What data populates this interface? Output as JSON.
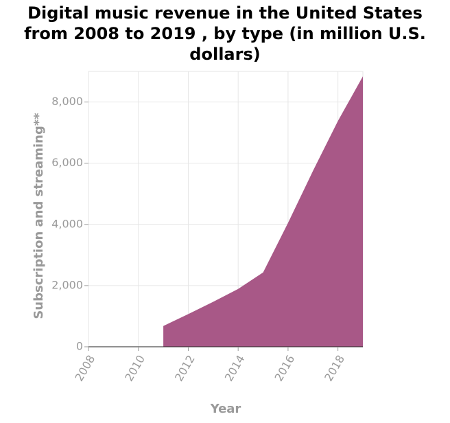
{
  "chart_data": {
    "type": "area",
    "title": "Digital music revenue in the United States\nfrom 2008 to 2019 , by type (in million U.S.\ndollars)",
    "xlabel": "Year",
    "ylabel": "Subscription and streaming**",
    "xlim": [
      2008,
      2019
    ],
    "ylim": [
      0,
      9000
    ],
    "x_ticks": [
      2008,
      2010,
      2012,
      2014,
      2016,
      2018
    ],
    "y_ticks": [
      0,
      2000,
      4000,
      6000,
      8000
    ],
    "y_tick_labels": [
      "0",
      "2,000",
      "4,000",
      "6,000",
      "8,000"
    ],
    "grid": true,
    "series": [
      {
        "color": "#a85887",
        "x": [
          2011,
          2012,
          2013,
          2014,
          2015,
          2016,
          2017,
          2018,
          2019
        ],
        "values": [
          680,
          1070,
          1470,
          1890,
          2430,
          4050,
          5750,
          7380,
          8840
        ]
      }
    ]
  }
}
